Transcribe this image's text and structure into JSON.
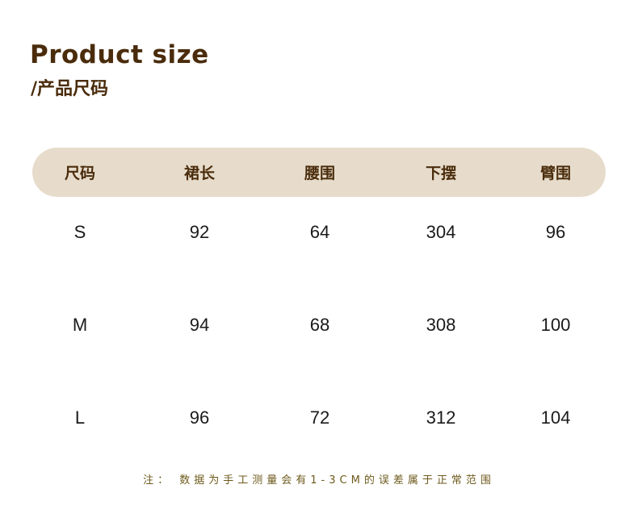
{
  "title": "Product size",
  "subtitle": "/产品尺码",
  "table": {
    "headers": [
      "尺码",
      "裙长",
      "腰围",
      "下摆",
      "臂围"
    ],
    "rows": [
      [
        "S",
        "92",
        "64",
        "304",
        "96"
      ],
      [
        "M",
        "94",
        "68",
        "308",
        "100"
      ],
      [
        "L",
        "96",
        "72",
        "312",
        "104"
      ]
    ]
  },
  "note": "注： 数据为手工测量会有1-3CM的误差属于正常范围",
  "colors": {
    "title": "#4a2c0c",
    "header_bg": "#e7dccb",
    "note": "#6e5a1c"
  }
}
